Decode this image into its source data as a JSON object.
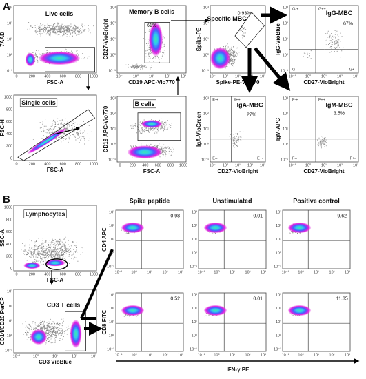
{
  "ticks": {
    "log": [
      "10⁻¹",
      "10⁰",
      "10¹",
      "10²",
      "10³"
    ],
    "linear": [
      "0",
      "200",
      "400",
      "600",
      "800",
      "1000"
    ]
  },
  "panel_a": {
    "label": "A",
    "plots": [
      {
        "title": "Live cells",
        "x_label": "FSC-A",
        "y_label": "7AAD",
        "x_scale": "linear",
        "y_scale": "log"
      },
      {
        "title": "Memory B cells",
        "x_label": "CD19 APC-Vio770",
        "y_label": "CD27-VioBright",
        "x_scale": "log",
        "y_scale": "log",
        "gate_value": "61%"
      },
      {
        "title": "Specific MBC",
        "x_label": "Spike-PE-Vio770",
        "y_label": "Spike-PE",
        "x_scale": "log",
        "y_scale": "log",
        "gate_value": "0.93%"
      },
      {
        "title": "IgG-MBC",
        "x_label": "CD27-VioBright",
        "y_label": "IgG-VioBlue",
        "x_scale": "log",
        "y_scale": "log",
        "gate_value": "67%",
        "quadrants": [
          "G-+",
          "G++",
          "G--",
          "G+-"
        ]
      },
      {
        "title": "Single cells",
        "x_label": "FSC-A",
        "y_label": "FSC-H",
        "x_scale": "linear",
        "y_scale": "linear"
      },
      {
        "title": "B cells",
        "x_label": "FSC-A",
        "y_label": "CD19 APC-Vio770",
        "x_scale": "linear",
        "y_scale": "log"
      },
      {
        "title": "IgA-MBC",
        "x_label": "CD27-VioBright",
        "y_label": "IgA-VioGreen",
        "x_scale": "log",
        "y_scale": "log",
        "gate_value": "27%",
        "quadrants": [
          "E-+",
          "E++",
          "E--",
          "E+-"
        ]
      },
      {
        "title": "IgM-MBC",
        "x_label": "CD27-VioBright",
        "y_label": "IgM-APC",
        "x_scale": "log",
        "y_scale": "log",
        "gate_value": "3.5%",
        "quadrants": [
          "F-+",
          "F++",
          "F--",
          "F+-"
        ]
      }
    ]
  },
  "panel_b": {
    "label": "B",
    "gating": [
      {
        "title": "Lymphocytes",
        "x_label": "FSC-A",
        "y_label": "SSC-A",
        "x_scale": "linear",
        "y_scale": "linear"
      },
      {
        "title": "CD3 T cells",
        "x_label": "CD3 VioBlue",
        "y_label": "CD14/CD20 PerCP",
        "x_scale": "log",
        "y_scale": "log"
      }
    ],
    "columns": [
      "Spike peptide",
      "Unstimulated",
      "Positive control"
    ],
    "rows": [
      {
        "y_label": "CD4 APC",
        "values": [
          0.98,
          0.01,
          9.62
        ]
      },
      {
        "y_label": "CD8 FITC",
        "values": [
          0.52,
          0.01,
          11.35
        ]
      }
    ],
    "x_label": "IFN-γ PE"
  }
}
